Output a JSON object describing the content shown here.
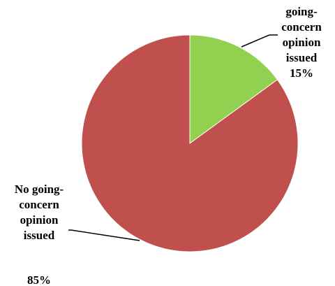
{
  "chart_data": {
    "type": "pie",
    "slices": [
      {
        "label_lines": [
          "going-",
          "concern",
          "opinion",
          "issued"
        ],
        "percent_text": "15%",
        "value": 15,
        "color": "#92d050"
      },
      {
        "label_lines": [
          "No going-",
          "concern",
          "opinion",
          "issued"
        ],
        "percent_text": "85%",
        "value": 85,
        "color": "#c0504d"
      }
    ]
  }
}
